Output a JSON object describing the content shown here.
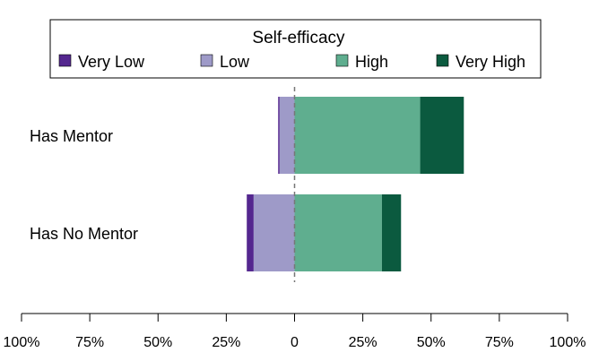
{
  "chart_data": {
    "type": "bar",
    "orientation": "horizontal",
    "stacked": "diverging",
    "legend": {
      "title": "Self-efficacy",
      "position": "top",
      "entries": [
        {
          "label": "Very Low",
          "color": "#54278f"
        },
        {
          "label": "Low",
          "color": "#9e9ac8"
        },
        {
          "label": "High",
          "color": "#5fae8f"
        },
        {
          "label": "Very High",
          "color": "#0b5a3f"
        }
      ]
    },
    "categories": [
      "Has Mentor",
      "Has No Mentor"
    ],
    "series": [
      {
        "name": "Very Low",
        "side": "negative",
        "values": [
          0.5,
          2.5
        ]
      },
      {
        "name": "Low",
        "side": "negative",
        "values": [
          5.5,
          15
        ]
      },
      {
        "name": "High",
        "side": "positive",
        "values": [
          46,
          32
        ]
      },
      {
        "name": "Very High",
        "side": "positive",
        "values": [
          16,
          7
        ]
      }
    ],
    "xlim": [
      -100,
      100
    ],
    "x_ticks": [
      -100,
      -75,
      -50,
      -25,
      0,
      25,
      50,
      75,
      100
    ],
    "x_tick_labels": [
      "100%",
      "75%",
      "50%",
      "25%",
      "0",
      "25%",
      "50%",
      "75%",
      "100%"
    ],
    "zero_line": "dashed",
    "grid": false
  }
}
